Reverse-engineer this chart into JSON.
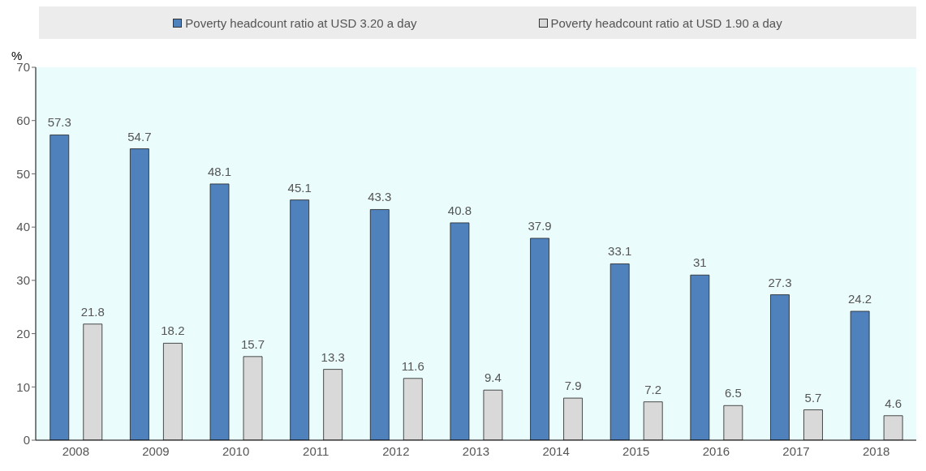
{
  "chart_data": {
    "type": "bar",
    "ylabel": "%",
    "categories": [
      "2008",
      "2009",
      "2010",
      "2011",
      "2012",
      "2013",
      "2014",
      "2015",
      "2016",
      "2017",
      "2018"
    ],
    "series": [
      {
        "name": "Poverty headcount ratio at USD 3.20 a day",
        "color": "#4f81bd",
        "values": [
          57.3,
          54.7,
          48.1,
          45.1,
          43.3,
          40.8,
          37.9,
          33.1,
          31,
          27.3,
          24.2
        ]
      },
      {
        "name": "Poverty headcount ratio at USD 1.90 a day",
        "color": "#d9d9d9",
        "values": [
          21.8,
          18.2,
          15.7,
          13.3,
          11.6,
          9.4,
          7.9,
          7.2,
          6.5,
          5.7,
          4.6
        ]
      }
    ],
    "ylim": [
      0,
      70
    ],
    "yticks": [
      0,
      10,
      20,
      30,
      40,
      50,
      60,
      70
    ],
    "grid": false,
    "legend": "top",
    "data_labels": true
  }
}
